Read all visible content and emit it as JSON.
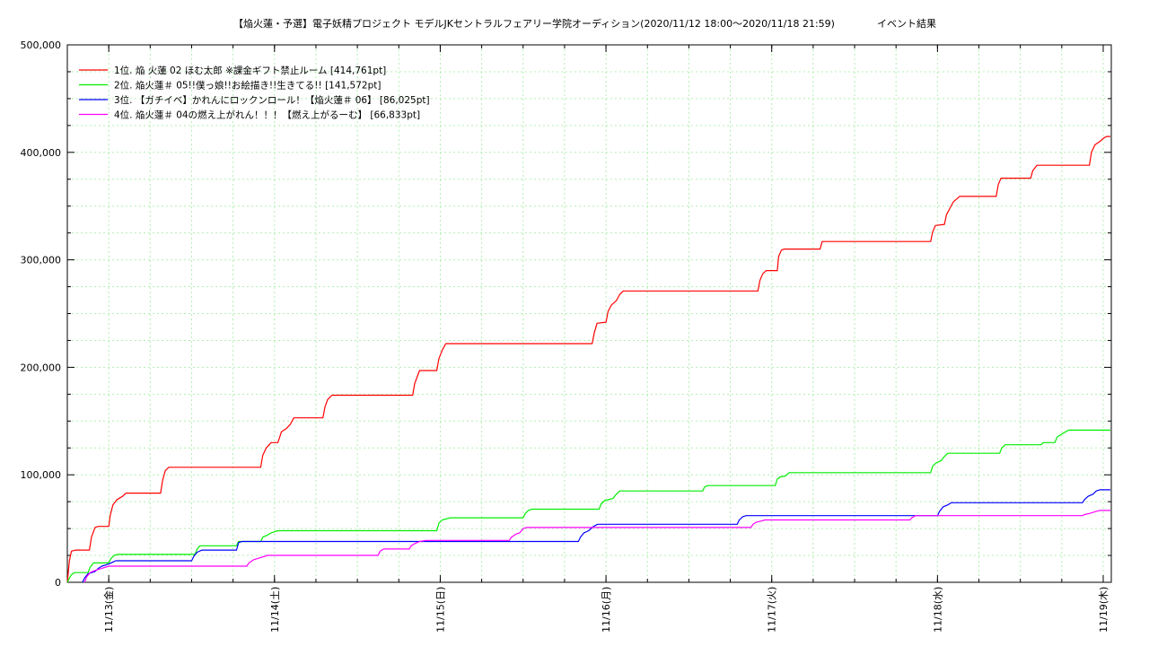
{
  "chart_data": {
    "type": "line",
    "title": "【焔火蓮・予選】電子妖精プロジェクト モデルJKセントラルフェアリー学院オーディション(2020/11/12 18:00〜2020/11/18 21:59)",
    "subtitle": "イベント結果",
    "x_unit": "hours since 11/12 18:00",
    "x_range": [
      0,
      148
    ],
    "x_ticks": [
      {
        "x": 6,
        "label": "11/13(金)"
      },
      {
        "x": 30,
        "label": "11/14(土)"
      },
      {
        "x": 54,
        "label": "11/15(日)"
      },
      {
        "x": 78,
        "label": "11/16(月)"
      },
      {
        "x": 102,
        "label": "11/17(火)"
      },
      {
        "x": 126,
        "label": "11/18(水)"
      },
      {
        "x": 150,
        "label": "11/19(木)"
      }
    ],
    "ylim": [
      0,
      500000
    ],
    "y_ticks": [
      {
        "v": 0,
        "label": "0"
      },
      {
        "v": 100000,
        "label": "100,000"
      },
      {
        "v": 200000,
        "label": "200,000"
      },
      {
        "v": 300000,
        "label": "300,000"
      },
      {
        "v": 400000,
        "label": "400,000"
      },
      {
        "v": 500000,
        "label": "500,000"
      }
    ],
    "grid": true,
    "legend_position": "top-left",
    "series": [
      {
        "name": "1位. 焔 火蓮 02 ほむ太郎 ※課金ギフト禁止ルーム [414,761pt]",
        "color": "#ff0000",
        "points": [
          [
            0,
            0
          ],
          [
            0.3,
            20000
          ],
          [
            0.6,
            29000
          ],
          [
            1.2,
            30000
          ],
          [
            3.2,
            30000
          ],
          [
            3.5,
            42000
          ],
          [
            4,
            51000
          ],
          [
            4.5,
            52000
          ],
          [
            6,
            52000
          ],
          [
            6.2,
            62000
          ],
          [
            6.6,
            72000
          ],
          [
            7.2,
            77000
          ],
          [
            8,
            80000
          ],
          [
            8.5,
            83000
          ],
          [
            13.5,
            83000
          ],
          [
            13.8,
            95000
          ],
          [
            14.2,
            104000
          ],
          [
            14.7,
            107000
          ],
          [
            28,
            107000
          ],
          [
            28.3,
            118000
          ],
          [
            28.8,
            125000
          ],
          [
            29.5,
            130000
          ],
          [
            30.5,
            130000
          ],
          [
            31,
            140000
          ],
          [
            31.7,
            143000
          ],
          [
            32.3,
            147000
          ],
          [
            32.8,
            153000
          ],
          [
            37,
            153000
          ],
          [
            37.3,
            163000
          ],
          [
            37.7,
            170000
          ],
          [
            38.3,
            174000
          ],
          [
            50,
            174000
          ],
          [
            50.3,
            185000
          ],
          [
            50.7,
            192000
          ],
          [
            51,
            197000
          ],
          [
            53.5,
            197000
          ],
          [
            53.8,
            208000
          ],
          [
            54.3,
            216000
          ],
          [
            54.8,
            222000
          ],
          [
            76,
            222000
          ],
          [
            76.3,
            232000
          ],
          [
            76.7,
            241000
          ],
          [
            78,
            242000
          ],
          [
            78.3,
            252000
          ],
          [
            78.8,
            258000
          ],
          [
            79.5,
            262000
          ],
          [
            80,
            268000
          ],
          [
            80.5,
            271000
          ],
          [
            100,
            271000
          ],
          [
            100.3,
            281000
          ],
          [
            100.7,
            287000
          ],
          [
            101.2,
            290000
          ],
          [
            102.8,
            290000
          ],
          [
            103,
            303000
          ],
          [
            103.4,
            309000
          ],
          [
            103.8,
            310000
          ],
          [
            109,
            310000
          ],
          [
            109.3,
            317000
          ],
          [
            125,
            317000
          ],
          [
            125.3,
            326000
          ],
          [
            125.7,
            332000
          ],
          [
            127,
            333000
          ],
          [
            127.3,
            342000
          ],
          [
            127.8,
            348000
          ],
          [
            128.3,
            354000
          ],
          [
            129.2,
            359000
          ],
          [
            134.5,
            359000
          ],
          [
            134.8,
            370000
          ],
          [
            135.2,
            376000
          ],
          [
            139.5,
            376000
          ],
          [
            139.8,
            383000
          ],
          [
            140.4,
            388000
          ],
          [
            148,
            388000
          ],
          [
            148.3,
            400000
          ],
          [
            148.8,
            407000
          ],
          [
            149.5,
            410000
          ],
          [
            150,
            413000
          ],
          [
            150.5,
            414761
          ],
          [
            153,
            414761
          ]
        ]
      },
      {
        "name": "2位. 焔火蓮＃ 05!!僕っ娘!!お絵描き!!生きてる!! [141,572pt]",
        "color": "#00ee00",
        "points": [
          [
            0,
            0
          ],
          [
            0.3,
            4000
          ],
          [
            0.6,
            7000
          ],
          [
            1,
            9000
          ],
          [
            3,
            9000
          ],
          [
            3.3,
            14000
          ],
          [
            3.8,
            18000
          ],
          [
            5,
            18000
          ],
          [
            6,
            18000
          ],
          [
            6.3,
            22000
          ],
          [
            6.8,
            25000
          ],
          [
            7.3,
            26000
          ],
          [
            18.5,
            26000
          ],
          [
            18.8,
            31000
          ],
          [
            19.2,
            34000
          ],
          [
            24.5,
            34000
          ],
          [
            24.8,
            38000
          ],
          [
            28,
            38000
          ],
          [
            28.3,
            42000
          ],
          [
            29,
            44000
          ],
          [
            29.5,
            46000
          ],
          [
            30,
            47000
          ],
          [
            30.5,
            48000
          ],
          [
            53.5,
            48000
          ],
          [
            53.8,
            55000
          ],
          [
            54.3,
            58000
          ],
          [
            55.5,
            60000
          ],
          [
            66,
            60000
          ],
          [
            66.3,
            64000
          ],
          [
            66.8,
            67000
          ],
          [
            67.3,
            68000
          ],
          [
            77,
            68000
          ],
          [
            77.3,
            73000
          ],
          [
            77.8,
            76000
          ],
          [
            79,
            78000
          ],
          [
            79.5,
            82000
          ],
          [
            80,
            85000
          ],
          [
            92,
            85000
          ],
          [
            92.3,
            89000
          ],
          [
            92.8,
            90000
          ],
          [
            102.5,
            90000
          ],
          [
            102.8,
            96000
          ],
          [
            103.2,
            98000
          ],
          [
            104,
            99000
          ],
          [
            104.5,
            102000
          ],
          [
            125,
            102000
          ],
          [
            125.3,
            108000
          ],
          [
            125.8,
            111000
          ],
          [
            126.5,
            113000
          ],
          [
            127,
            117000
          ],
          [
            127.5,
            120000
          ],
          [
            135,
            120000
          ],
          [
            135.3,
            125000
          ],
          [
            135.8,
            128000
          ],
          [
            141,
            128000
          ],
          [
            141.3,
            130000
          ],
          [
            143,
            130000
          ],
          [
            143.3,
            135000
          ],
          [
            144,
            138000
          ],
          [
            145,
            141572
          ],
          [
            153,
            141572
          ]
        ]
      },
      {
        "name": "3位. 【ガチイベ】かれんにロックンロール！【焔火蓮＃ 06】 [86,025pt]",
        "color": "#0000ff",
        "points": [
          [
            2.2,
            0
          ],
          [
            2.5,
            4000
          ],
          [
            3,
            8000
          ],
          [
            4,
            10000
          ],
          [
            4.5,
            13000
          ],
          [
            5,
            15000
          ],
          [
            6,
            17000
          ],
          [
            7,
            20000
          ],
          [
            18,
            20000
          ],
          [
            18.3,
            24000
          ],
          [
            18.8,
            28000
          ],
          [
            19.5,
            30000
          ],
          [
            24.5,
            30000
          ],
          [
            24.8,
            37000
          ],
          [
            25.3,
            38000
          ],
          [
            74,
            38000
          ],
          [
            74.3,
            42000
          ],
          [
            74.8,
            46000
          ],
          [
            75.5,
            48000
          ],
          [
            76.2,
            52000
          ],
          [
            76.8,
            54000
          ],
          [
            97,
            54000
          ],
          [
            97.3,
            58000
          ],
          [
            97.8,
            61000
          ],
          [
            98.3,
            62000
          ],
          [
            126,
            62000
          ],
          [
            126.3,
            66000
          ],
          [
            126.8,
            70000
          ],
          [
            127.5,
            72000
          ],
          [
            128,
            74000
          ],
          [
            147,
            74000
          ],
          [
            147.3,
            77000
          ],
          [
            147.8,
            80000
          ],
          [
            148.5,
            82000
          ],
          [
            149,
            85000
          ],
          [
            149.5,
            86025
          ],
          [
            153,
            86025
          ]
        ]
      },
      {
        "name": "4位. 焔火蓮＃ 04の燃え上がれん！！！【燃え上がるーむ】 [66,833pt]",
        "color": "#ff00ff",
        "points": [
          [
            2.5,
            0
          ],
          [
            2.8,
            5000
          ],
          [
            3.3,
            9000
          ],
          [
            4,
            11000
          ],
          [
            5,
            13000
          ],
          [
            6,
            15000
          ],
          [
            26,
            15000
          ],
          [
            26.3,
            18000
          ],
          [
            27,
            21000
          ],
          [
            28,
            23000
          ],
          [
            29,
            25000
          ],
          [
            45,
            25000
          ],
          [
            45.3,
            29000
          ],
          [
            45.8,
            31000
          ],
          [
            49.5,
            31000
          ],
          [
            49.8,
            34000
          ],
          [
            50.3,
            36000
          ],
          [
            51,
            38000
          ],
          [
            52,
            39000
          ],
          [
            64,
            39000
          ],
          [
            64.3,
            42000
          ],
          [
            65,
            45000
          ],
          [
            65.5,
            46000
          ],
          [
            66,
            50000
          ],
          [
            66.5,
            51000
          ],
          [
            99,
            51000
          ],
          [
            99.3,
            54000
          ],
          [
            99.8,
            56000
          ],
          [
            100.5,
            57000
          ],
          [
            101,
            58000
          ],
          [
            122,
            58000
          ],
          [
            122.3,
            60000
          ],
          [
            122.8,
            62000
          ],
          [
            147,
            62000
          ],
          [
            147.3,
            63000
          ],
          [
            148,
            64000
          ],
          [
            149,
            66000
          ],
          [
            149.5,
            66833
          ],
          [
            153,
            66833
          ]
        ]
      }
    ]
  }
}
